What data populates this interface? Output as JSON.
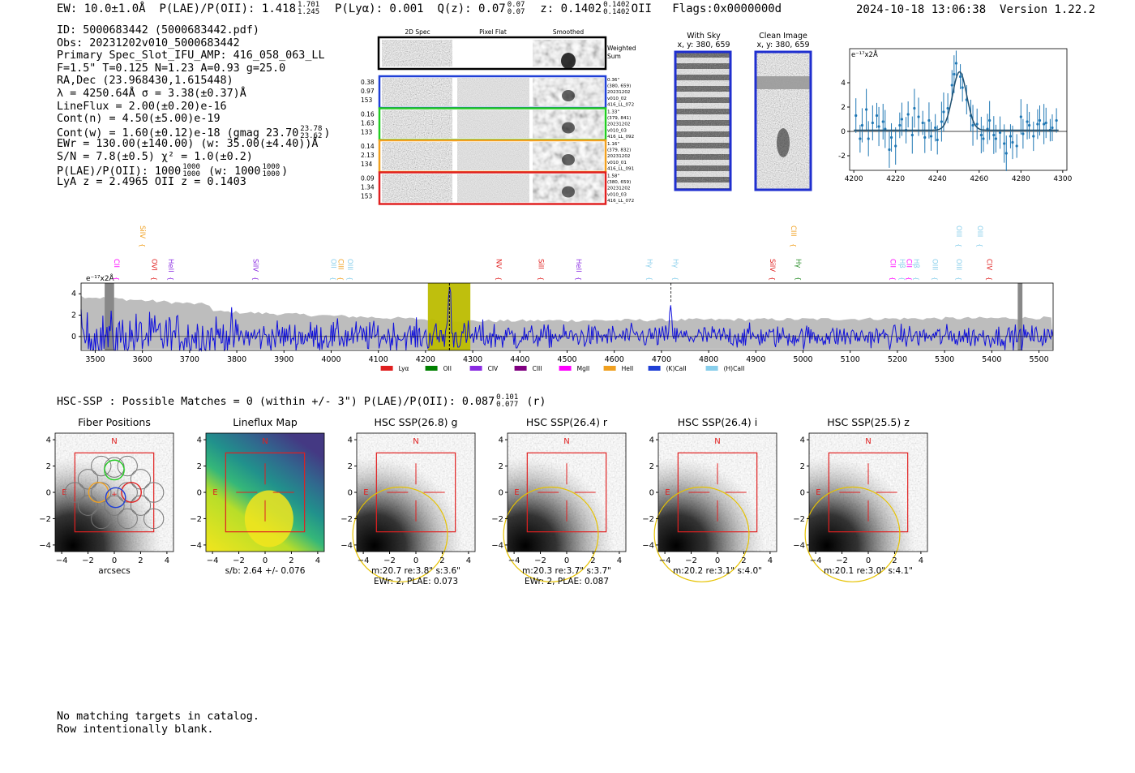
{
  "header": {
    "ew_label": "EW: 10.0±1.0Å",
    "plae_label": "P(LAE)/P(OII):",
    "plae_value": "1.418",
    "plae_hi": "1.701",
    "plae_lo": "1.245",
    "plya": "P(Lyα): 0.001",
    "qz_label": "Q(z): 0.07",
    "qz_hi": "0.07",
    "qz_lo": "0.07",
    "z_label": "z: 0.1402",
    "z_hi": "0.1402",
    "z_lo": "0.1402",
    "z_line": "OII",
    "flags": "Flags:0x0000000d",
    "timestamp": "2024-10-18 13:06:38",
    "version": "Version 1.22.2"
  },
  "info_lines": {
    "id": "ID: 5000683442 (5000683442.pdf)",
    "obs": "Obs: 20231202v010_5000683442",
    "primary": "Primary Spec_Slot_IFU_AMP: 416_058_063_LL",
    "params": "F=1.5\"  T=0.125  N=1.23  A=0.93  g=25.0",
    "radec": "RA,Dec (23.968430,1.615448)",
    "lambda": "λ = 4250.64Å   σ = 3.38(±0.37)Å",
    "lineflux": "LineFlux = 2.00(±0.20)e-16",
    "contn": "Cont(n) = 4.50(±5.00)e-19",
    "contw": "Cont(w) = 1.60(±0.12)e-18 (gmag 23.70",
    "contw_hi": "23.78",
    "contw_lo": "23.62",
    "contw_end": ")",
    "ewr": "EWr = 130.00(±140.00) (w: 35.00(±4.40))Å",
    "sn": "S/N = 7.8(±0.5)  χ² = 1.0(±0.2)",
    "plae": "P(LAE)/P(OII): 1000",
    "plae_hi": "1000",
    "plae_lo": "1000",
    "plae_w": "(w: 1000",
    "plae_w_hi": "1000",
    "plae_w_lo": "1000",
    "plae_end": ")",
    "redshifts": "LyA z = 2.4965  OII z = 0.1403"
  },
  "cutout_panel": {
    "col_2d": "2D Spec",
    "col_flat": "Pixel Flat",
    "col_smooth": "Smoothed",
    "weighted": "Weighted",
    "sum": "Sum",
    "rows": [
      {
        "left": [
          "0.38",
          "0.97",
          "153"
        ],
        "right": [
          "0.36\"",
          "(380, 659)",
          "20231202",
          "v010_02",
          "416_LL_072"
        ],
        "color": "#1f3fd6"
      },
      {
        "left": [
          "0.16",
          "1.63",
          "133"
        ],
        "right": [
          "1.33\"",
          "(379, 841)",
          "20231202",
          "v010_03",
          "416_LL_092"
        ],
        "color": "#22cc22"
      },
      {
        "left": [
          "0.14",
          "2.13",
          "134"
        ],
        "right": [
          "1.16\"",
          "(379, 832)",
          "20231202",
          "v010_01",
          "416_LL_091"
        ],
        "color": "#f0a020"
      },
      {
        "left": [
          "0.09",
          "1.34",
          "153"
        ],
        "right": [
          "1.58\"",
          "(380, 659)",
          "20231202",
          "v010_03",
          "416_LL_072"
        ],
        "color": "#e02020"
      }
    ]
  },
  "sky_panel": {
    "title": "With Sky",
    "coords": "x, y: 380, 659"
  },
  "clean_panel": {
    "title": "Clean Image",
    "coords": "x, y: 380, 659"
  },
  "fit_plot": {
    "unit": "e⁻¹⁷x2Å",
    "xticks": [
      "4200",
      "4220",
      "4240",
      "4260",
      "4280",
      "4300"
    ],
    "yticks": [
      "-2",
      "0",
      "2",
      "4"
    ]
  },
  "chart_data": [
    {
      "type": "scatter",
      "name": "line-fit",
      "xlim": [
        4198,
        4302
      ],
      "ylim": [
        -3.2,
        6.8
      ],
      "ylabel": "e⁻¹⁷x2Å",
      "points": [
        [
          4201,
          1.3
        ],
        [
          4203,
          -0.6
        ],
        [
          4204,
          0.5
        ],
        [
          4206,
          1.8
        ],
        [
          4207,
          -0.6
        ],
        [
          4209,
          0.7
        ],
        [
          4211,
          1.3
        ],
        [
          4212,
          0.4
        ],
        [
          4214,
          0.8
        ],
        [
          4215,
          0.2
        ],
        [
          4217,
          -1.5
        ],
        [
          4218,
          -0.5
        ],
        [
          4220,
          -1.2
        ],
        [
          4222,
          0.5
        ],
        [
          4223,
          1.0
        ],
        [
          4225,
          0.1
        ],
        [
          4226,
          1.4
        ],
        [
          4228,
          -0.3
        ],
        [
          4229,
          1.9
        ],
        [
          4231,
          1.2
        ],
        [
          4233,
          0.7
        ],
        [
          4234,
          -0.5
        ],
        [
          4236,
          0.9
        ],
        [
          4237,
          -0.4
        ],
        [
          4239,
          0.3
        ],
        [
          4240,
          -0.7
        ],
        [
          4242,
          0.8
        ],
        [
          4243,
          1.6
        ],
        [
          4245,
          1.9
        ],
        [
          4247,
          3.8
        ],
        [
          4248,
          4.7
        ],
        [
          4249,
          5.6
        ],
        [
          4251,
          4.5
        ],
        [
          4252,
          3.6
        ],
        [
          4254,
          2.6
        ],
        [
          4256,
          1.3
        ],
        [
          4257,
          0.5
        ],
        [
          4259,
          0.6
        ],
        [
          4261,
          -0.3
        ],
        [
          4262,
          -0.6
        ],
        [
          4264,
          0.2
        ],
        [
          4265,
          0.9
        ],
        [
          4267,
          -0.3
        ],
        [
          4268,
          -0.6
        ],
        [
          4270,
          -0.1
        ],
        [
          4272,
          -1.0
        ],
        [
          4273,
          -1.8
        ],
        [
          4275,
          -0.4
        ],
        [
          4276,
          -0.9
        ],
        [
          4278,
          -1.2
        ],
        [
          4280,
          1.2
        ],
        [
          4281,
          -0.2
        ],
        [
          4283,
          0.8
        ],
        [
          4284,
          0.5
        ],
        [
          4286,
          -0.4
        ],
        [
          4288,
          0.6
        ],
        [
          4289,
          0.9
        ],
        [
          4291,
          0.6
        ],
        [
          4292,
          0.7
        ],
        [
          4294,
          0.1
        ],
        [
          4295,
          0.3
        ],
        [
          4297,
          0.9
        ]
      ],
      "fit": {
        "center": 4250.64,
        "sigma": 3.38,
        "amplitude": 4.8,
        "baseline": 0.1
      }
    },
    {
      "type": "line",
      "name": "full-spectrum",
      "xlim": [
        3470,
        5530
      ],
      "ylim": [
        -1.3,
        5.0
      ],
      "xticks": [
        3500,
        3600,
        3700,
        3800,
        3900,
        4000,
        4100,
        4200,
        4300,
        4400,
        4500,
        4600,
        4700,
        4800,
        4900,
        5000,
        5100,
        5200,
        5300,
        5400,
        5500
      ],
      "yticks": [
        0,
        2,
        4
      ],
      "ylabel": "e⁻¹⁷x2Å",
      "highlight": [
        4205,
        4295
      ],
      "peak": 4250.64,
      "secondary_peak": 4720,
      "line_labels": [
        {
          "label": "CII",
          "x": 3535,
          "color": "#ff00ff",
          "level": 2
        },
        {
          "label": "SiIV",
          "x": 3590,
          "color": "#f0a020",
          "level": 1
        },
        {
          "label": "OVI",
          "x": 3615,
          "color": "#e02020",
          "level": 2
        },
        {
          "label": "HeII",
          "x": 3650,
          "color": "#8a2be2",
          "level": 2
        },
        {
          "label": "SiIV",
          "x": 3830,
          "color": "#8a2be2",
          "level": 2
        },
        {
          "label": "OII",
          "x": 3995,
          "color": "#87ceeb",
          "level": 2
        },
        {
          "label": "CIII",
          "x": 4010,
          "color": "#f0a020",
          "level": 2
        },
        {
          "label": "OIII",
          "x": 4030,
          "color": "#87ceeb",
          "level": 2
        },
        {
          "label": "NV",
          "x": 4345,
          "color": "#e02020",
          "level": 2
        },
        {
          "label": "SiII",
          "x": 4435,
          "color": "#e02020",
          "level": 2
        },
        {
          "label": "HeII",
          "x": 4515,
          "color": "#8a2be2",
          "level": 2
        },
        {
          "label": "Hγ",
          "x": 4665,
          "color": "#87ceeb",
          "level": 2
        },
        {
          "label": "Hγ",
          "x": 4720,
          "color": "#87ceeb",
          "level": 2
        },
        {
          "label": "SiIV",
          "x": 4925,
          "color": "#e02020",
          "level": 2
        },
        {
          "label": "CIII",
          "x": 4970,
          "color": "#f0a020",
          "level": 1
        },
        {
          "label": "Hγ",
          "x": 4980,
          "color": "#228b22",
          "level": 2
        },
        {
          "label": "CII",
          "x": 5180,
          "color": "#ff00ff",
          "level": 2
        },
        {
          "label": "Hβ",
          "x": 5200,
          "color": "#87ceeb",
          "level": 2
        },
        {
          "label": "CII",
          "x": 5215,
          "color": "#ff00ff",
          "level": 2
        },
        {
          "label": "Hβ",
          "x": 5230,
          "color": "#87ceeb",
          "level": 2
        },
        {
          "label": "OIII",
          "x": 5270,
          "color": "#87ceeb",
          "level": 2
        },
        {
          "label": "OIII",
          "x": 5320,
          "color": "#87ceeb",
          "level": 2
        },
        {
          "label": "OIII",
          "x": 5320,
          "color": "#87ceeb",
          "level": 1
        },
        {
          "label": "OIII",
          "x": 5365,
          "color": "#87ceeb",
          "level": 1
        },
        {
          "label": "CIV",
          "x": 5385,
          "color": "#e02020",
          "level": 2
        }
      ],
      "legend": [
        {
          "label": "Lyα",
          "color": "#e02020"
        },
        {
          "label": "OII",
          "color": "#008000"
        },
        {
          "label": "CIV",
          "color": "#8a2be2"
        },
        {
          "label": "CIII",
          "color": "#800080"
        },
        {
          "label": "MgII",
          "color": "#ff00ff"
        },
        {
          "label": "HeII",
          "color": "#f0a020"
        },
        {
          "label": "(K)CaII",
          "color": "#1f3fd6"
        },
        {
          "label": "(H)CaII",
          "color": "#87ceeb"
        }
      ]
    }
  ],
  "hsc": {
    "summary": "HSC-SSP : Possible Matches = 0 (within +/- 3\")  P(LAE)/P(OII): 0.087",
    "summary_hi": "0.101",
    "summary_lo": "0.077",
    "summary_band": "(r)",
    "ticks": [
      "-4",
      "-2",
      "0",
      "2",
      "4"
    ],
    "north": "N",
    "east": "E",
    "panels": [
      {
        "title": "Fiber Positions",
        "xlabel": "arcsecs",
        "line2": "",
        "kind": "fibers"
      },
      {
        "title": "Lineflux Map",
        "xlabel": "s/b: 2.64 +/- 0.076",
        "line2": "",
        "kind": "flux"
      },
      {
        "title": "HSC SSP(26.8) g",
        "xlabel": "m:20.7  re:3.8\"  s:3.6\"",
        "line2": "EWr: 2, PLAE: 0.073",
        "kind": "img"
      },
      {
        "title": "HSC SSP(26.4) r",
        "xlabel": "m:20.3  re:3.7\"  s:3.7\"",
        "line2": "EWr: 2, PLAE: 0.087",
        "kind": "img"
      },
      {
        "title": "HSC SSP(26.4) i",
        "xlabel": "m:20.2  re:3.1\"  s:4.0\"",
        "line2": "",
        "kind": "img"
      },
      {
        "title": "HSC SSP(25.5) z",
        "xlabel": "m:20.1  re:3.0\"  s:4.1\"",
        "line2": "",
        "kind": "img"
      }
    ]
  },
  "footer": {
    "line1": "No matching targets in catalog.",
    "line2": "Row intentionally blank."
  }
}
